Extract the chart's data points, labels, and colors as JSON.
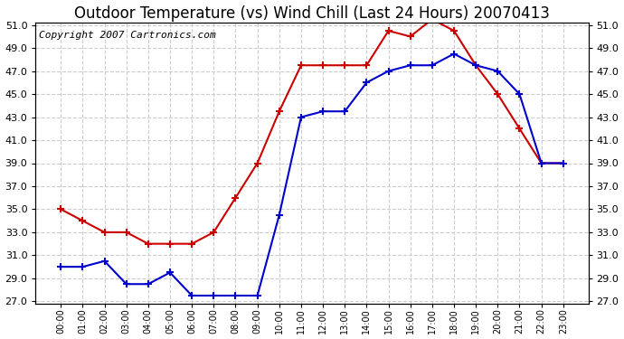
{
  "title": "Outdoor Temperature (vs) Wind Chill (Last 24 Hours) 20070413",
  "copyright": "Copyright 2007 Cartronics.com",
  "hours": [
    "00:00",
    "01:00",
    "02:00",
    "03:00",
    "04:00",
    "05:00",
    "06:00",
    "07:00",
    "08:00",
    "09:00",
    "10:00",
    "11:00",
    "12:00",
    "13:00",
    "14:00",
    "15:00",
    "16:00",
    "17:00",
    "18:00",
    "19:00",
    "20:00",
    "21:00",
    "22:00",
    "23:00"
  ],
  "outdoor_temp": [
    35.0,
    34.0,
    33.0,
    33.0,
    32.0,
    32.0,
    32.0,
    33.0,
    36.0,
    39.0,
    43.5,
    47.5,
    47.5,
    47.5,
    47.5,
    50.5,
    50.0,
    51.5,
    50.5,
    47.5,
    45.0,
    42.0,
    39.0,
    39.0
  ],
  "wind_chill": [
    30.0,
    30.0,
    30.5,
    28.5,
    28.5,
    29.5,
    27.5,
    27.5,
    27.5,
    27.5,
    34.5,
    43.0,
    43.5,
    43.5,
    46.0,
    47.0,
    47.5,
    47.5,
    48.5,
    47.5,
    47.0,
    45.0,
    39.0,
    39.0
  ],
  "temp_color": "#cc0000",
  "windchill_color": "#0000cc",
  "ylim_min": 27.0,
  "ylim_max": 51.0,
  "ytick_step": 2.0,
  "bg_color": "#ffffff",
  "plot_bg_color": "#ffffff",
  "grid_color": "#cccccc",
  "title_fontsize": 12,
  "copyright_fontsize": 8
}
